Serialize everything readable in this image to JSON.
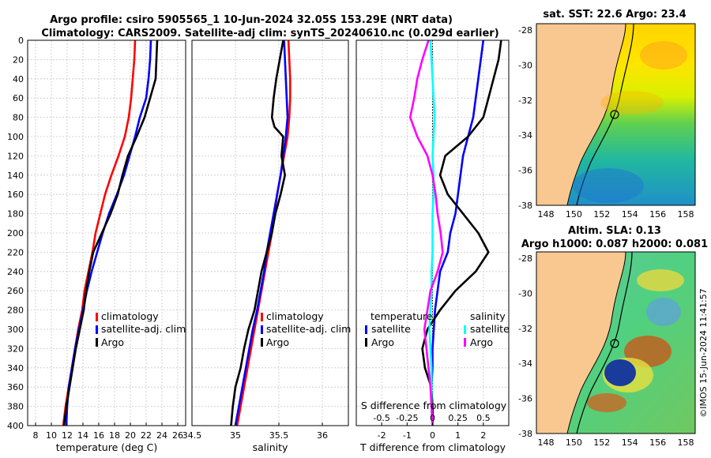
{
  "figure": {
    "title_line1": "Argo profile: csiro 5905565_1 10-Jun-2024 32.05S 153.29E (NRT data)",
    "title_line2": "Climatology: CARS2009. Satellite-adj clim: synTS_20240610.nc (0.029d earlier)",
    "credit": "©IMOS 15-Jun-2024 11:41:57"
  },
  "colors": {
    "climatology": "#ff0000",
    "satellite": "#0000ff",
    "argo": "#000000",
    "salinity_satellite": "#00ffff",
    "salinity_argo": "#ff00ff",
    "land": "#f9c891"
  },
  "chart_data": [
    {
      "id": "temperature",
      "type": "line",
      "xlabel": "temperature (deg C)",
      "ylabel": "",
      "xlim": [
        7,
        27
      ],
      "ylim": [
        400,
        0
      ],
      "grid": true,
      "xticks": [
        8,
        10,
        12,
        14,
        16,
        18,
        20,
        22,
        24,
        26
      ],
      "yticks": [
        0,
        20,
        40,
        60,
        80,
        100,
        120,
        140,
        160,
        180,
        200,
        220,
        240,
        260,
        280,
        300,
        320,
        340,
        360,
        380,
        400
      ],
      "legend": [
        "climatology",
        "satellite-adj. clim",
        "Argo"
      ],
      "legend_position": "lower-right",
      "series": [
        {
          "name": "climatology",
          "color": "#ff0000",
          "points": [
            [
              20.6,
              0
            ],
            [
              20.5,
              20
            ],
            [
              20.3,
              40
            ],
            [
              20.1,
              60
            ],
            [
              19.8,
              80
            ],
            [
              19.3,
              100
            ],
            [
              18.5,
              120
            ],
            [
              17.6,
              140
            ],
            [
              16.8,
              160
            ],
            [
              16.2,
              180
            ],
            [
              15.6,
              200
            ],
            [
              15.2,
              220
            ],
            [
              14.7,
              240
            ],
            [
              14.2,
              260
            ],
            [
              13.9,
              280
            ],
            [
              13.4,
              300
            ],
            [
              13.0,
              320
            ],
            [
              12.6,
              340
            ],
            [
              12.2,
              360
            ],
            [
              11.8,
              380
            ],
            [
              11.5,
              400
            ]
          ]
        },
        {
          "name": "satellite-adj. clim",
          "color": "#0000ff",
          "points": [
            [
              22.6,
              0
            ],
            [
              22.5,
              20
            ],
            [
              22.3,
              40
            ],
            [
              22.0,
              60
            ],
            [
              21.2,
              80
            ],
            [
              20.6,
              100
            ],
            [
              19.9,
              120
            ],
            [
              19.2,
              140
            ],
            [
              18.3,
              160
            ],
            [
              17.3,
              180
            ],
            [
              16.5,
              200
            ],
            [
              15.8,
              220
            ],
            [
              15.1,
              240
            ],
            [
              14.5,
              260
            ],
            [
              14.0,
              280
            ],
            [
              13.5,
              300
            ],
            [
              13.0,
              320
            ],
            [
              12.6,
              340
            ],
            [
              12.2,
              360
            ],
            [
              12.0,
              380
            ],
            [
              11.9,
              400
            ]
          ]
        },
        {
          "name": "Argo",
          "color": "#000000",
          "points": [
            [
              23.4,
              0
            ],
            [
              23.3,
              20
            ],
            [
              23.2,
              40
            ],
            [
              22.5,
              60
            ],
            [
              21.8,
              80
            ],
            [
              20.8,
              100
            ],
            [
              19.7,
              120
            ],
            [
              19.0,
              140
            ],
            [
              18.4,
              160
            ],
            [
              17.5,
              180
            ],
            [
              16.4,
              200
            ],
            [
              15.3,
              220
            ],
            [
              14.8,
              240
            ],
            [
              14.4,
              260
            ],
            [
              14.1,
              280
            ],
            [
              13.6,
              300
            ],
            [
              13.1,
              320
            ],
            [
              12.7,
              340
            ],
            [
              12.3,
              360
            ],
            [
              11.9,
              380
            ],
            [
              11.6,
              400
            ]
          ]
        }
      ]
    },
    {
      "id": "salinity",
      "type": "line",
      "xlabel": "salinity",
      "ylabel": "",
      "xlim": [
        34.5,
        36.3
      ],
      "ylim": [
        400,
        0
      ],
      "grid": true,
      "xticks": [
        34.5,
        35,
        35.5,
        36
      ],
      "legend": [
        "climatology",
        "satellite-adj. clim",
        "Argo"
      ],
      "legend_position": "lower-right",
      "series": [
        {
          "name": "climatology",
          "color": "#ff0000",
          "points": [
            [
              35.61,
              0
            ],
            [
              35.62,
              20
            ],
            [
              35.63,
              40
            ],
            [
              35.63,
              60
            ],
            [
              35.62,
              80
            ],
            [
              35.6,
              100
            ],
            [
              35.56,
              120
            ],
            [
              35.52,
              140
            ],
            [
              35.48,
              160
            ],
            [
              35.45,
              180
            ],
            [
              35.42,
              200
            ],
            [
              35.38,
              220
            ],
            [
              35.34,
              240
            ],
            [
              35.3,
              260
            ],
            [
              35.26,
              280
            ],
            [
              35.22,
              300
            ],
            [
              35.18,
              320
            ],
            [
              35.14,
              340
            ],
            [
              35.1,
              360
            ],
            [
              35.06,
              380
            ],
            [
              35.02,
              400
            ]
          ]
        },
        {
          "name": "satellite-adj. clim",
          "color": "#0000ff",
          "points": [
            [
              35.56,
              0
            ],
            [
              35.57,
              20
            ],
            [
              35.58,
              40
            ],
            [
              35.59,
              60
            ],
            [
              35.6,
              80
            ],
            [
              35.58,
              100
            ],
            [
              35.55,
              120
            ],
            [
              35.52,
              140
            ],
            [
              35.48,
              160
            ],
            [
              35.44,
              180
            ],
            [
              35.4,
              200
            ],
            [
              35.36,
              220
            ],
            [
              35.33,
              240
            ],
            [
              35.29,
              260
            ],
            [
              35.25,
              280
            ],
            [
              35.2,
              300
            ],
            [
              35.16,
              320
            ],
            [
              35.12,
              340
            ],
            [
              35.08,
              360
            ],
            [
              35.04,
              380
            ],
            [
              35.0,
              400
            ]
          ]
        },
        {
          "name": "Argo",
          "color": "#000000",
          "points": [
            [
              35.55,
              0
            ],
            [
              35.51,
              20
            ],
            [
              35.47,
              40
            ],
            [
              35.44,
              60
            ],
            [
              35.42,
              80
            ],
            [
              35.45,
              90
            ],
            [
              35.55,
              100
            ],
            [
              35.53,
              120
            ],
            [
              35.57,
              140
            ],
            [
              35.52,
              160
            ],
            [
              35.46,
              180
            ],
            [
              35.42,
              200
            ],
            [
              35.36,
              220
            ],
            [
              35.3,
              240
            ],
            [
              35.26,
              260
            ],
            [
              35.22,
              280
            ],
            [
              35.15,
              300
            ],
            [
              35.1,
              320
            ],
            [
              35.06,
              340
            ],
            [
              35.0,
              360
            ],
            [
              34.97,
              380
            ],
            [
              34.95,
              400
            ]
          ]
        }
      ]
    },
    {
      "id": "difference",
      "type": "line",
      "xlabel": "T difference from climatology",
      "top_axis_label": "S difference from climatology",
      "xlim": [
        -3,
        3
      ],
      "ylim": [
        400,
        0
      ],
      "grid": true,
      "xticks": [
        -2,
        -1,
        0,
        1,
        2
      ],
      "top_ticks": [
        "-0.5",
        "-0.25",
        "0",
        "0.25",
        "0.5"
      ],
      "top_tick_values": [
        -0.5,
        -0.25,
        0,
        0.25,
        0.5
      ],
      "legend_temperature": {
        "header": "temperature",
        "items": [
          "satellite",
          "Argo"
        ]
      },
      "legend_salinity": {
        "header": "salinity",
        "items": [
          "satellite",
          "Argo"
        ]
      },
      "series": [
        {
          "name": "temperature satellite",
          "color": "#0000ff",
          "points": [
            [
              2.0,
              0
            ],
            [
              1.9,
              20
            ],
            [
              1.8,
              40
            ],
            [
              1.7,
              60
            ],
            [
              1.6,
              80
            ],
            [
              1.4,
              100
            ],
            [
              1.2,
              120
            ],
            [
              1.1,
              140
            ],
            [
              1.0,
              160
            ],
            [
              0.9,
              180
            ],
            [
              0.7,
              200
            ],
            [
              0.6,
              220
            ],
            [
              0.3,
              240
            ],
            [
              0.2,
              260
            ],
            [
              0.1,
              280
            ],
            [
              0.05,
              300
            ],
            [
              0.0,
              320
            ],
            [
              0.0,
              340
            ],
            [
              -0.05,
              360
            ],
            [
              0.0,
              380
            ],
            [
              0.0,
              400
            ]
          ]
        },
        {
          "name": "temperature Argo",
          "color": "#000000",
          "points": [
            [
              2.7,
              0
            ],
            [
              2.6,
              20
            ],
            [
              2.4,
              40
            ],
            [
              2.2,
              60
            ],
            [
              2.0,
              80
            ],
            [
              1.4,
              100
            ],
            [
              0.5,
              120
            ],
            [
              0.3,
              140
            ],
            [
              0.6,
              160
            ],
            [
              1.2,
              180
            ],
            [
              1.8,
              200
            ],
            [
              2.2,
              220
            ],
            [
              1.7,
              240
            ],
            [
              0.9,
              260
            ],
            [
              0.3,
              280
            ],
            [
              -0.2,
              300
            ],
            [
              -0.4,
              320
            ],
            [
              -0.3,
              340
            ],
            [
              -0.05,
              360
            ],
            [
              0.0,
              380
            ],
            [
              0.0,
              400
            ]
          ]
        },
        {
          "name": "salinity satellite",
          "color": "#00ffff",
          "points": [
            [
              -0.02,
              0
            ],
            [
              -0.01,
              20
            ],
            [
              0.0,
              40
            ],
            [
              0.01,
              60
            ],
            [
              0.02,
              80
            ],
            [
              0.01,
              100
            ],
            [
              0.0,
              120
            ],
            [
              0.01,
              140
            ],
            [
              0.01,
              160
            ],
            [
              0.0,
              180
            ],
            [
              0.0,
              200
            ],
            [
              0.0,
              220
            ],
            [
              -0.01,
              240
            ],
            [
              -0.01,
              260
            ],
            [
              -0.02,
              280
            ],
            [
              -0.03,
              300
            ],
            [
              -0.02,
              320
            ],
            [
              -0.01,
              340
            ],
            [
              -0.01,
              360
            ],
            [
              -0.01,
              380
            ],
            [
              0.0,
              400
            ]
          ]
        },
        {
          "name": "salinity Argo",
          "color": "#ff00ff",
          "points": [
            [
              -0.04,
              0
            ],
            [
              -0.1,
              20
            ],
            [
              -0.15,
              40
            ],
            [
              -0.18,
              60
            ],
            [
              -0.22,
              80
            ],
            [
              -0.15,
              100
            ],
            [
              -0.05,
              120
            ],
            [
              0.0,
              140
            ],
            [
              0.03,
              160
            ],
            [
              0.05,
              180
            ],
            [
              0.08,
              200
            ],
            [
              0.1,
              220
            ],
            [
              0.05,
              240
            ],
            [
              -0.02,
              260
            ],
            [
              -0.05,
              280
            ],
            [
              -0.08,
              300
            ],
            [
              -0.06,
              320
            ],
            [
              -0.04,
              340
            ],
            [
              -0.02,
              360
            ],
            [
              -0.01,
              380
            ],
            [
              0.0,
              400
            ]
          ]
        }
      ]
    }
  ],
  "maps": [
    {
      "id": "sst-map",
      "title": "sat. SST: 22.6 Argo: 23.4",
      "xticks": [
        "148",
        "150",
        "152",
        "154",
        "156",
        "158"
      ],
      "yticks": [
        "-28",
        "-30",
        "-32",
        "-34",
        "-36",
        "-38"
      ]
    },
    {
      "id": "sla-map",
      "title_line1": "Altim. SLA: 0.13",
      "title_line2": "Argo h1000: 0.087 h2000: 0.081",
      "xticks": [
        "148",
        "150",
        "152",
        "154",
        "156",
        "158"
      ],
      "yticks": [
        "-28",
        "-30",
        "-32",
        "-34",
        "-36",
        "-38"
      ]
    }
  ]
}
